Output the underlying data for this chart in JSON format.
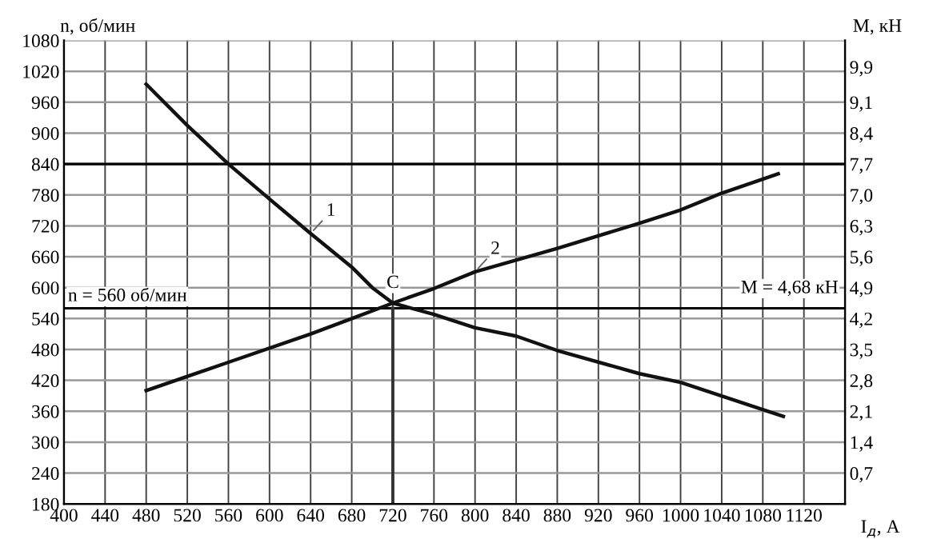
{
  "chart_data": {
    "type": "line",
    "xlabel": "I$_{д}$, A",
    "ylabel": "n, об/мин",
    "y2label": "M, кН",
    "series": [
      {
        "name": "1",
        "color": "#111111",
        "x": [
          480,
          520,
          560,
          600,
          640,
          680,
          700,
          720,
          760,
          800,
          840,
          880,
          960,
          1000,
          1100
        ],
        "values": [
          995,
          915,
          840,
          772,
          705,
          640,
          600,
          570,
          548,
          522,
          506,
          478,
          433,
          416,
          350
        ]
      },
      {
        "name": "2",
        "color": "#111111",
        "axis": "y2",
        "x": [
          480,
          560,
          640,
          680,
          720,
          760,
          800,
          880,
          960,
          1000,
          1040,
          1095
        ],
        "values": [
          2.57,
          3.21,
          3.85,
          4.2,
          4.55,
          4.88,
          5.26,
          5.79,
          6.36,
          6.66,
          7.04,
          7.48
        ]
      }
    ],
    "xlim": [
      400,
      1160
    ],
    "xticks": [
      400,
      440,
      480,
      520,
      560,
      600,
      640,
      680,
      720,
      760,
      800,
      840,
      880,
      920,
      960,
      1000,
      1040,
      1080,
      1120,
      {
        "value": 1160,
        "label": null
      }
    ],
    "ylim": [
      180,
      1080
    ],
    "yticks": [
      180,
      240,
      300,
      360,
      420,
      480,
      540,
      600,
      660,
      720,
      780,
      840,
      900,
      960,
      1020,
      1080
    ],
    "y2lim": [
      0,
      10.5
    ],
    "y2ticks": [
      {
        "value": 0.7,
        "label": "0,7"
      },
      {
        "value": 1.4,
        "label": "1,4"
      },
      {
        "value": 2.1,
        "label": "2,1"
      },
      {
        "value": 2.8,
        "label": "2,8"
      },
      {
        "value": 3.5,
        "label": "3,5"
      },
      {
        "value": 4.2,
        "label": "4,2"
      },
      {
        "value": 4.9,
        "label": "4,9"
      },
      {
        "value": 5.6,
        "label": "5,6"
      },
      {
        "value": 6.3,
        "label": "6,3"
      },
      {
        "value": 7.0,
        "label": "7,0"
      },
      {
        "value": 7.7,
        "label": "7,7"
      },
      {
        "value": 8.4,
        "label": "8,4"
      },
      {
        "value": 9.1,
        "label": "9,1"
      },
      {
        "value": 9.9,
        "label": "9,9"
      }
    ],
    "ref_lines": [
      {
        "axis": "y",
        "value": 560,
        "label": "n = 560 об/мин",
        "color": "#000000"
      },
      {
        "axis": "y",
        "value": 840,
        "color": "#000000"
      },
      {
        "axis": "x",
        "value": 720,
        "color": "#333333"
      }
    ],
    "annotations": [
      {
        "text": "C",
        "x": 720,
        "y": 570
      },
      {
        "text": "M = 4,68 кН",
        "x": 1160,
        "y": 560
      }
    ],
    "grid": true,
    "legend": false,
    "marker": "none",
    "line_style": "solid"
  }
}
